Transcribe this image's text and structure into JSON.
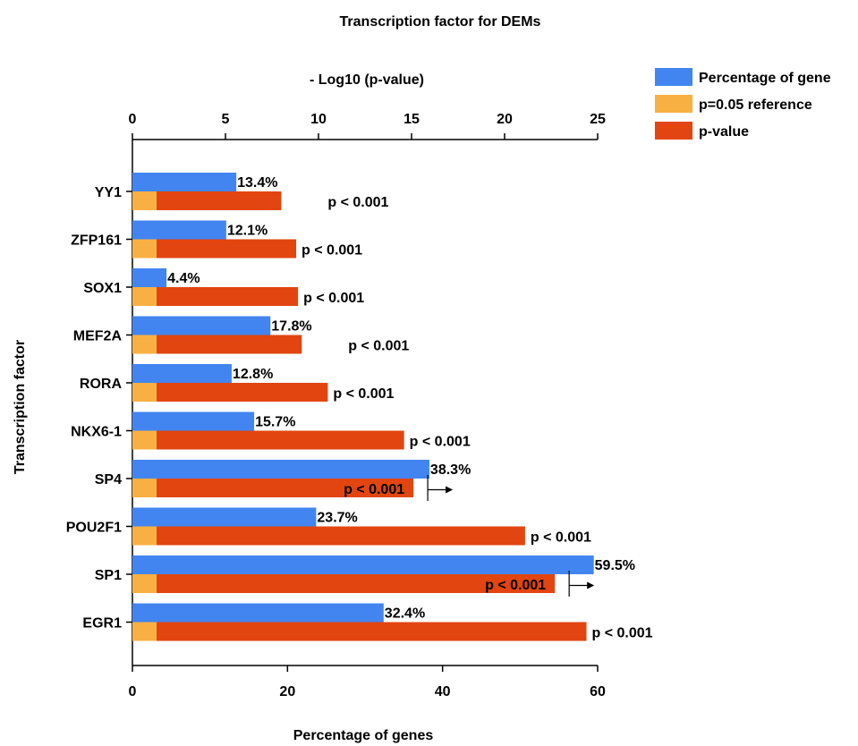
{
  "chart_data": {
    "type": "bar",
    "title": "Transcription factor for DEMs",
    "xlabel_bottom": "Percentage of genes",
    "xlabel_top": "- Log10 (p-value)",
    "ylabel": "Transcription factor",
    "xlim_bottom": [
      0,
      60
    ],
    "xticks_bottom": [
      "0",
      "20",
      "40",
      "60"
    ],
    "xlim_top": [
      0,
      25
    ],
    "xticks_top": [
      "0",
      "5",
      "10",
      "15",
      "20",
      "25"
    ],
    "legend_position": "top-right",
    "categories": [
      "YY1",
      "ZFP161",
      "SOX1",
      "MEF2A",
      "RORA",
      "NKX6-1",
      "SP4",
      "POU2F1",
      "SP1",
      "EGR1"
    ],
    "series": [
      {
        "name": "Percentage of gene",
        "axis": "bottom",
        "color": "#4285f0",
        "values": [
          13.4,
          12.1,
          4.4,
          17.8,
          12.8,
          15.7,
          38.3,
          23.7,
          59.5,
          32.4
        ],
        "labels": [
          "13.4%",
          "12.1%",
          "4.4%",
          "17.8%",
          "12.8%",
          "15.7%",
          "38.3%",
          "23.7%",
          "59.5%",
          "32.4%"
        ]
      },
      {
        "name": "p=0.05 reference",
        "axis": "top",
        "color": "#f9b042",
        "values": [
          1.3,
          1.3,
          1.3,
          1.3,
          1.3,
          1.3,
          1.3,
          1.3,
          1.3,
          1.3
        ]
      },
      {
        "name": "p-value",
        "axis": "top",
        "color": "#e2450f",
        "values": [
          8.0,
          8.8,
          8.9,
          9.1,
          10.5,
          14.6,
          15.1,
          21.1,
          22.7,
          24.4
        ],
        "labels": [
          "p < 0.001",
          "p < 0.001",
          "p < 0.001",
          "p < 0.001",
          "p < 0.001",
          "p < 0.001",
          "p < 0.001",
          "p < 0.001",
          "p < 0.001",
          "p < 0.001"
        ]
      }
    ],
    "truncated_categories": [
      "SP4",
      "SP1"
    ]
  }
}
